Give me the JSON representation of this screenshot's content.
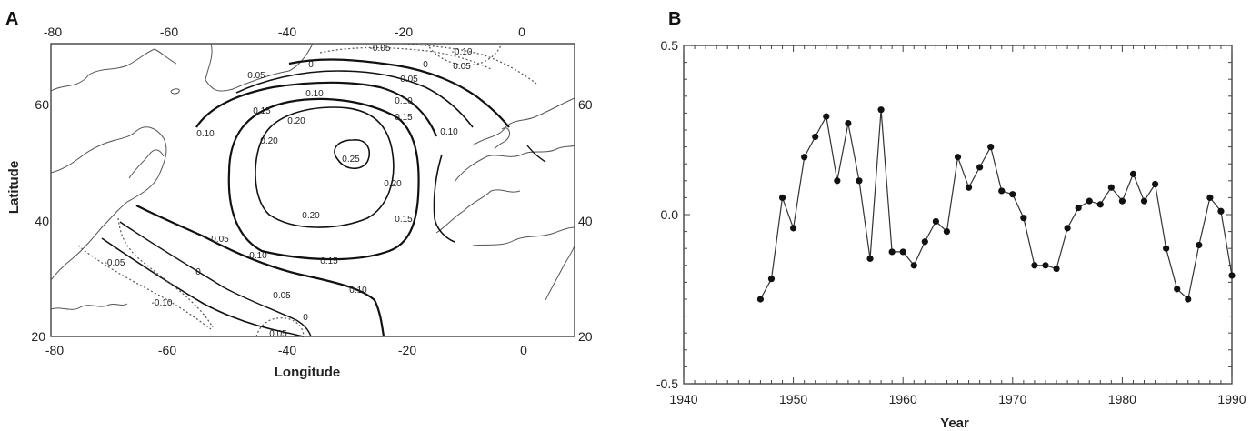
{
  "chart_data": [
    {
      "panel": "A",
      "type": "contour",
      "xlabel": "Longitude",
      "ylabel": "Latitude",
      "xlim": [
        -80,
        10
      ],
      "ylim": [
        20,
        70
      ],
      "x_ticks_bottom": [
        "-80",
        "-60",
        "-40",
        "-20",
        "0"
      ],
      "x_ticks_top": [
        "-80",
        "-60",
        "-40",
        "-20",
        "0"
      ],
      "y_ticks_left": [
        "20",
        "40",
        "60"
      ],
      "y_ticks_right": [
        "20",
        "40",
        "60"
      ],
      "contour_levels": [
        -0.1,
        -0.05,
        0,
        0.05,
        0.1,
        0.15,
        0.2,
        0.25
      ],
      "contour_labels": [
        "0.25",
        "0.20",
        "0.20",
        "0.20",
        "0.20",
        "0.15",
        "0.15",
        "0.15",
        "0.15",
        "0.10",
        "0.10",
        "0.10",
        "0.10",
        "0.10",
        "0.05",
        "0.05",
        "0.05",
        "0.05",
        "0.05",
        "0",
        "0",
        "0",
        "0",
        "-0.05",
        "-0.05",
        "-0.10",
        "-0.10",
        "0.05",
        "0.10"
      ],
      "maximum": {
        "lon": -30,
        "lat": 48,
        "value": 0.25
      }
    },
    {
      "panel": "B",
      "type": "line",
      "xlabel": "Year",
      "ylabel": "",
      "xlim": [
        1940,
        1990
      ],
      "ylim": [
        -0.5,
        0.5
      ],
      "x_ticks": [
        "1940",
        "1950",
        "1960",
        "1970",
        "1980",
        "1990"
      ],
      "y_ticks": [
        "-0.5",
        "0.0",
        "0.5"
      ],
      "grid": false,
      "markers": "filled-circle",
      "series": [
        {
          "x": [
            1947,
            1948,
            1949,
            1950,
            1951,
            1952,
            1953,
            1954,
            1955,
            1956,
            1957,
            1958,
            1959,
            1960,
            1961,
            1962,
            1963,
            1964,
            1965,
            1966,
            1967,
            1968,
            1969,
            1970,
            1971,
            1972,
            1973,
            1974,
            1975,
            1976,
            1977,
            1978,
            1979,
            1980,
            1981,
            1982,
            1983,
            1984,
            1985,
            1986,
            1987,
            1988,
            1989,
            1990
          ],
          "y": [
            -0.25,
            -0.19,
            0.05,
            -0.04,
            0.17,
            0.23,
            0.29,
            0.1,
            0.27,
            0.1,
            -0.13,
            0.31,
            -0.11,
            -0.11,
            -0.15,
            -0.08,
            -0.02,
            -0.05,
            0.17,
            0.08,
            0.14,
            0.2,
            0.07,
            0.06,
            -0.01,
            -0.15,
            -0.15,
            -0.16,
            -0.04,
            0.02,
            0.04,
            0.03,
            0.08,
            0.04,
            0.12,
            0.04,
            0.09,
            -0.1,
            -0.22,
            -0.25,
            -0.09,
            0.05,
            0.01,
            -0.18
          ]
        }
      ]
    }
  ],
  "panels": {
    "a_letter": "A",
    "b_letter": "B"
  }
}
